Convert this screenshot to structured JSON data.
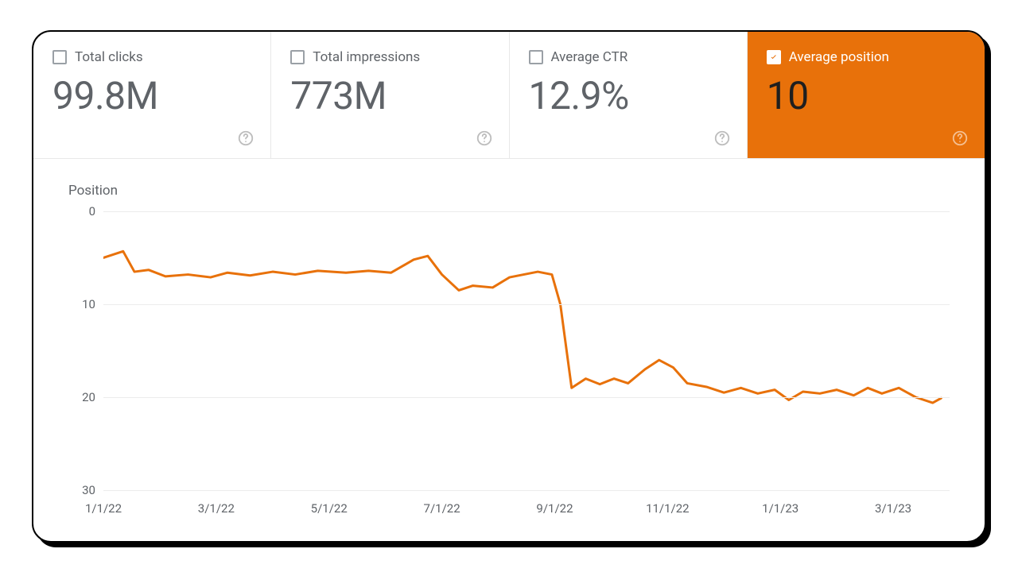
{
  "metrics": [
    {
      "key": "total-clicks",
      "label": "Total clicks",
      "value": "99.8M",
      "active": false
    },
    {
      "key": "total-impressions",
      "label": "Total impressions",
      "value": "773M",
      "active": false
    },
    {
      "key": "average-ctr",
      "label": "Average CTR",
      "value": "12.9%",
      "active": false
    },
    {
      "key": "average-position",
      "label": "Average position",
      "value": "10",
      "active": true
    }
  ],
  "colors": {
    "accent": "#e8710a",
    "metric_text": "#5f6368",
    "grid": "#ececec",
    "card_border": "#000000"
  },
  "chart": {
    "type": "line",
    "title": "Position",
    "line_color": "#e8710a",
    "line_width": 3,
    "background_color": "#ffffff",
    "grid_color": "#ececec",
    "axis_label_color": "#5f6368",
    "axis_label_fontsize": 15,
    "y_inverted": true,
    "ylim": [
      0,
      30
    ],
    "y_ticks": [
      0,
      10,
      20,
      30
    ],
    "x_range_months": 15,
    "x_tick_positions": [
      0,
      2,
      4,
      6,
      8,
      10,
      12,
      14
    ],
    "x_tick_labels": [
      "1/1/22",
      "3/1/22",
      "5/1/22",
      "7/1/22",
      "9/1/22",
      "11/1/22",
      "1/1/23",
      "3/1/23"
    ],
    "series": [
      {
        "x": 0.0,
        "y": 5.0
      },
      {
        "x": 0.35,
        "y": 4.3
      },
      {
        "x": 0.55,
        "y": 6.5
      },
      {
        "x": 0.8,
        "y": 6.3
      },
      {
        "x": 1.1,
        "y": 7.0
      },
      {
        "x": 1.5,
        "y": 6.8
      },
      {
        "x": 1.9,
        "y": 7.1
      },
      {
        "x": 2.2,
        "y": 6.6
      },
      {
        "x": 2.6,
        "y": 6.9
      },
      {
        "x": 3.0,
        "y": 6.5
      },
      {
        "x": 3.4,
        "y": 6.8
      },
      {
        "x": 3.8,
        "y": 6.4
      },
      {
        "x": 4.3,
        "y": 6.6
      },
      {
        "x": 4.7,
        "y": 6.4
      },
      {
        "x": 5.1,
        "y": 6.6
      },
      {
        "x": 5.5,
        "y": 5.2
      },
      {
        "x": 5.75,
        "y": 4.8
      },
      {
        "x": 6.0,
        "y": 6.8
      },
      {
        "x": 6.3,
        "y": 8.5
      },
      {
        "x": 6.55,
        "y": 8.0
      },
      {
        "x": 6.9,
        "y": 8.2
      },
      {
        "x": 7.2,
        "y": 7.1
      },
      {
        "x": 7.7,
        "y": 6.5
      },
      {
        "x": 7.95,
        "y": 6.8
      },
      {
        "x": 8.1,
        "y": 10.0
      },
      {
        "x": 8.3,
        "y": 19.0
      },
      {
        "x": 8.55,
        "y": 18.0
      },
      {
        "x": 8.8,
        "y": 18.6
      },
      {
        "x": 9.05,
        "y": 18.0
      },
      {
        "x": 9.3,
        "y": 18.5
      },
      {
        "x": 9.6,
        "y": 17.0
      },
      {
        "x": 9.85,
        "y": 16.0
      },
      {
        "x": 10.1,
        "y": 16.8
      },
      {
        "x": 10.35,
        "y": 18.5
      },
      {
        "x": 10.7,
        "y": 18.9
      },
      {
        "x": 11.0,
        "y": 19.5
      },
      {
        "x": 11.3,
        "y": 19.0
      },
      {
        "x": 11.6,
        "y": 19.6
      },
      {
        "x": 11.9,
        "y": 19.2
      },
      {
        "x": 12.15,
        "y": 20.3
      },
      {
        "x": 12.4,
        "y": 19.4
      },
      {
        "x": 12.7,
        "y": 19.6
      },
      {
        "x": 13.0,
        "y": 19.2
      },
      {
        "x": 13.3,
        "y": 19.8
      },
      {
        "x": 13.55,
        "y": 19.0
      },
      {
        "x": 13.8,
        "y": 19.6
      },
      {
        "x": 14.1,
        "y": 19.0
      },
      {
        "x": 14.4,
        "y": 20.0
      },
      {
        "x": 14.7,
        "y": 20.6
      },
      {
        "x": 14.85,
        "y": 20.1
      }
    ]
  }
}
